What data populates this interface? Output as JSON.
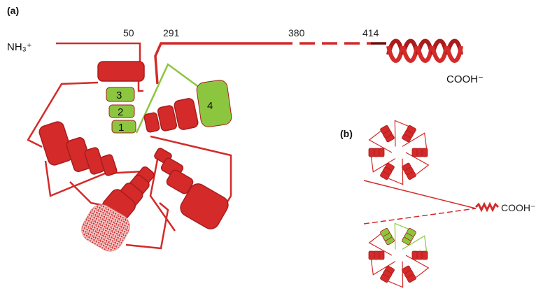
{
  "panel_a": {
    "label": "(a)",
    "n_terminus": "NH₃⁺",
    "residues": [
      "50",
      "291",
      "380",
      "414"
    ],
    "c_terminus": "COOH⁻",
    "green_blades": [
      "3",
      "2",
      "1",
      "4"
    ]
  },
  "panel_b": {
    "label": "(b)",
    "c_terminus": "COOH⁻"
  }
}
